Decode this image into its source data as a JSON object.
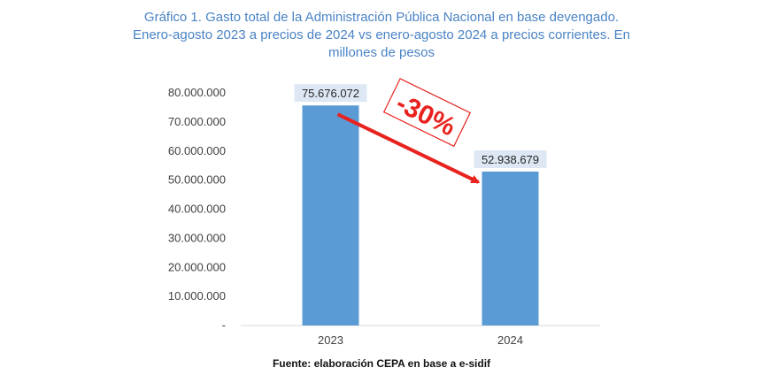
{
  "title_lines": [
    "Gráfico 1. Gasto total de la Administración Pública Nacional en base devengado.",
    "Enero-agosto 2023 a precios de 2024 vs enero-agosto 2024 a precios corrientes. En",
    "millones de pesos"
  ],
  "source": "Fuente: elaboración CEPA en base a e-sidif",
  "chart_data": {
    "type": "bar",
    "title": "Gráfico 1. Gasto total de la Administración Pública Nacional en base devengado. Enero-agosto 2023 a precios de 2024 vs enero-agosto 2024 a precios corrientes. En millones de pesos",
    "categories": [
      "2023",
      "2024"
    ],
    "values": [
      75676072,
      52938679
    ],
    "value_labels": [
      "75.676.072",
      "52.938.679"
    ],
    "ylim": [
      0,
      80000000
    ],
    "yticks": [
      0,
      10000000,
      20000000,
      30000000,
      40000000,
      50000000,
      60000000,
      70000000,
      80000000
    ],
    "ytick_labels": [
      "-",
      "10.000.000",
      "20.000.000",
      "30.000.000",
      "40.000.000",
      "50.000.000",
      "60.000.000",
      "70.000.000",
      "80.000.000"
    ],
    "grid": false,
    "bar_color": "#5b9bd5",
    "label_bg": "#dde8f4",
    "annotation": {
      "text": "-30%",
      "color": "#e8231f"
    }
  }
}
